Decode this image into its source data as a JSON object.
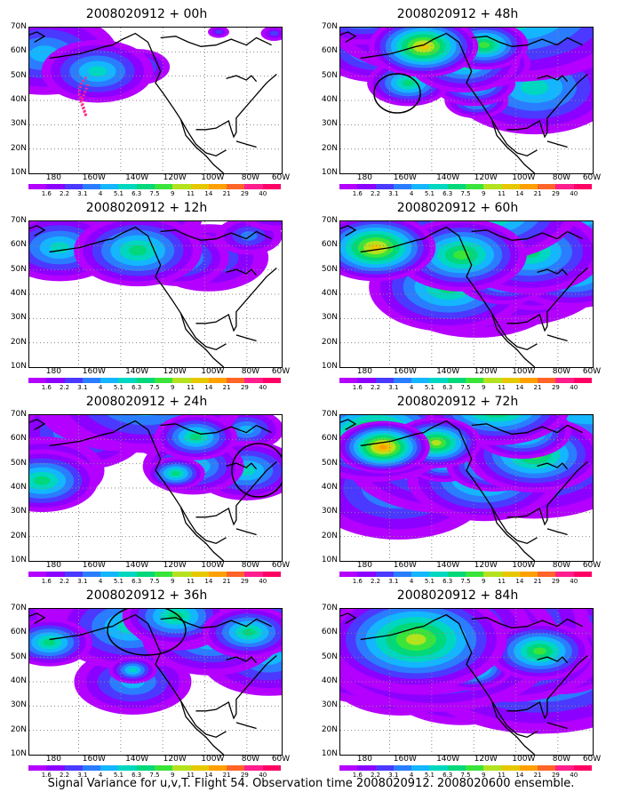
{
  "caption": "Signal Variance for u,v,T. Flight 54. Observation time 2008020912. 2008020600 ensemble.",
  "lat_labels": [
    "70N",
    "60N",
    "50N",
    "40N",
    "30N",
    "20N",
    "10N"
  ],
  "lon_labels": [
    "180",
    "160W",
    "140W",
    "120W",
    "100W",
    "80W",
    "60W"
  ],
  "colorbar": {
    "labels": [
      "1.6",
      "2.2",
      "3.1",
      "4",
      "5.1",
      "6.3",
      "7.5",
      "9",
      "11",
      "14",
      "21",
      "29",
      "40"
    ],
    "colors": [
      "#b400ff",
      "#8c00ff",
      "#4b39ff",
      "#2a7dff",
      "#13b6ff",
      "#00d7c0",
      "#00d87a",
      "#3ae43a",
      "#b4e21e",
      "#e6c800",
      "#ffa000",
      "#ff6428",
      "#ff1e8c",
      "#ff0064"
    ]
  },
  "panels": [
    {
      "title": "2008020912 + 00h",
      "blobs": [
        [
          0.06,
          0.18,
          0.55,
          4
        ],
        [
          0.27,
          0.3,
          0.42,
          5
        ],
        [
          0.43,
          0.27,
          0.24,
          4
        ],
        [
          0.75,
          0.03,
          0.08,
          2
        ],
        [
          0.97,
          0.04,
          0.1,
          2
        ]
      ],
      "track": true
    },
    {
      "title": "2008020912 + 12h",
      "blobs": [
        [
          0.36,
          -0.05,
          0.62,
          4
        ],
        [
          0.71,
          0.25,
          0.45,
          3
        ],
        [
          0.87,
          0.1,
          0.25,
          3
        ],
        [
          0.97,
          -0.08,
          0.28,
          3
        ],
        [
          0.12,
          0.18,
          0.45,
          5
        ],
        [
          0.43,
          0.2,
          0.48,
          6
        ],
        [
          0.65,
          0.35,
          0.18,
          3
        ],
        [
          0.59,
          0.25,
          0.38,
          5
        ]
      ]
    },
    {
      "title": "2008020912 + 24h",
      "blobs": [
        [
          0.2,
          0.12,
          0.5,
          4
        ],
        [
          0.06,
          0.38,
          0.45,
          4
        ],
        [
          0.05,
          0.45,
          0.42,
          6
        ],
        [
          0.86,
          0.38,
          0.4,
          5
        ],
        [
          0.38,
          -0.1,
          0.68,
          5
        ],
        [
          0.46,
          -0.12,
          0.74,
          5
        ],
        [
          0.72,
          0.25,
          0.2,
          4
        ],
        [
          0.52,
          0.18,
          0.2,
          4
        ],
        [
          0.65,
          0.35,
          0.38,
          5
        ],
        [
          0.58,
          0.4,
          0.22,
          6
        ],
        [
          0.86,
          0.1,
          0.28,
          4
        ],
        [
          0.66,
          0.15,
          0.31,
          6
        ]
      ],
      "circle": [
        290,
        528,
        30,
        30
      ]
    },
    {
      "title": "2008020912 + 36h",
      "blobs": [
        [
          0.4,
          0.12,
          0.58,
          5
        ],
        [
          0.29,
          -0.1,
          0.87,
          3
        ],
        [
          0.48,
          -0.06,
          0.88,
          4
        ],
        [
          0.95,
          0.33,
          0.52,
          4
        ],
        [
          0.41,
          0.5,
          0.44,
          4
        ],
        [
          0.72,
          0.19,
          0.52,
          5
        ],
        [
          0.59,
          0.1,
          0.36,
          5
        ],
        [
          0.75,
          0.2,
          0.15,
          4
        ],
        [
          0.58,
          0.05,
          0.4,
          6
        ],
        [
          0.83,
          -0.1,
          0.6,
          5
        ],
        [
          0.41,
          0.42,
          0.18,
          5
        ],
        [
          0.08,
          0.23,
          0.32,
          6
        ],
        [
          0.87,
          0.16,
          0.35,
          6
        ]
      ],
      "circle": [
        164,
        708,
        44,
        28
      ]
    },
    {
      "title": "2008020912 + 48h",
      "blobs": [
        [
          0.34,
          -0.08,
          0.77,
          6
        ],
        [
          0.69,
          -0.13,
          0.98,
          6
        ],
        [
          0.75,
          0.39,
          0.49,
          5
        ],
        [
          0.57,
          0.12,
          0.33,
          7
        ],
        [
          0.36,
          0.23,
          0.35,
          6
        ],
        [
          0.09,
          -0.17,
          0.56,
          7
        ],
        [
          0.77,
          0.41,
          0.63,
          5
        ],
        [
          0.98,
          -0.05,
          0.93,
          4
        ],
        [
          0.66,
          0.12,
          0.23,
          5
        ],
        [
          0.63,
          -0.08,
          0.49,
          5
        ],
        [
          0.15,
          0.13,
          0.48,
          5
        ],
        [
          0.53,
          0.38,
          0.31,
          6
        ],
        [
          0.27,
          0.38,
          0.31,
          6
        ],
        [
          0.59,
          0.25,
          0.31,
          6
        ],
        [
          0.54,
          0.5,
          0.24,
          5
        ],
        [
          0.49,
          0.23,
          0.42,
          6
        ],
        [
          0.33,
          0.13,
          0.41,
          9
        ]
      ],
      "circle": [
        446,
        104,
        26,
        22
      ]
    },
    {
      "title": "2008020912 + 60h",
      "blobs": [
        [
          0.34,
          -0.1,
          0.84,
          7
        ],
        [
          0.57,
          -0.09,
          0.71,
          7
        ],
        [
          0.92,
          -0.09,
          0.6,
          6
        ],
        [
          0.26,
          0.11,
          0.23,
          5
        ],
        [
          0.54,
          0.45,
          0.68,
          4
        ],
        [
          0.69,
          0.36,
          0.7,
          4
        ],
        [
          0.92,
          0.34,
          0.5,
          6
        ],
        [
          0.43,
          0.45,
          0.6,
          6
        ],
        [
          0.48,
          0.23,
          0.49,
          7
        ],
        [
          0.65,
          0.38,
          0.37,
          6
        ],
        [
          0.43,
          0.21,
          0.36,
          5
        ],
        [
          0.77,
          0.42,
          0.37,
          5
        ],
        [
          0.75,
          0.21,
          0.56,
          6
        ],
        [
          0.11,
          0.2,
          0.33,
          7
        ],
        [
          0.14,
          0.18,
          0.45,
          9
        ]
      ]
    },
    {
      "title": "2008020912 + 72h",
      "blobs": [
        [
          0.23,
          0.5,
          0.69,
          4
        ],
        [
          0.61,
          0.34,
          0.36,
          7
        ],
        [
          0.14,
          0.14,
          0.62,
          8
        ],
        [
          0.45,
          0.2,
          0.71,
          5
        ],
        [
          0.77,
          0.29,
          0.82,
          5
        ],
        [
          0.77,
          0.27,
          0.51,
          7
        ],
        [
          0.42,
          0.28,
          0.77,
          6
        ],
        [
          0.3,
          0.15,
          0.74,
          5
        ],
        [
          0.57,
          0.43,
          0.58,
          6
        ],
        [
          0.41,
          0.31,
          0.29,
          6
        ],
        [
          0.9,
          0.07,
          0.32,
          6
        ],
        [
          0.62,
          -0.08,
          0.56,
          8
        ],
        [
          0.31,
          -0.12,
          0.6,
          6
        ],
        [
          0.99,
          -0.15,
          0.97,
          6
        ],
        [
          0.53,
          0.17,
          0.33,
          5
        ],
        [
          0.72,
          0.11,
          0.37,
          7
        ],
        [
          0.38,
          0.19,
          0.34,
          8
        ],
        [
          0.39,
          0.31,
          0.44,
          5
        ],
        [
          0.17,
          0.22,
          0.35,
          10
        ]
      ]
    },
    {
      "title": "2008020912 + 84h",
      "blobs": [
        [
          0.3,
          0.34,
          0.51,
          6
        ],
        [
          0.79,
          0.35,
          0.99,
          6
        ],
        [
          0.3,
          0.06,
          0.9,
          7
        ],
        [
          0.59,
          -0.03,
          0.85,
          5
        ],
        [
          0.17,
          0.14,
          0.79,
          6
        ],
        [
          0.24,
          0.45,
          0.55,
          5
        ],
        [
          0.19,
          0.24,
          0.84,
          7
        ],
        [
          0.69,
          0.28,
          0.95,
          5
        ],
        [
          0.48,
          0.49,
          0.6,
          5
        ],
        [
          0.68,
          0.28,
          0.7,
          7
        ],
        [
          0.54,
          0.11,
          0.85,
          7
        ],
        [
          0.87,
          0.35,
          0.46,
          6
        ],
        [
          0.38,
          0.23,
          0.93,
          7
        ],
        [
          0.59,
          0.32,
          0.62,
          6
        ],
        [
          0.33,
          0.17,
          0.82,
          7
        ],
        [
          0.44,
          0.44,
          0.5,
          6
        ],
        [
          0.52,
          0.4,
          0.31,
          7
        ],
        [
          0.79,
          0.29,
          0.39,
          7
        ],
        [
          0.3,
          0.21,
          0.68,
          8
        ]
      ]
    }
  ]
}
